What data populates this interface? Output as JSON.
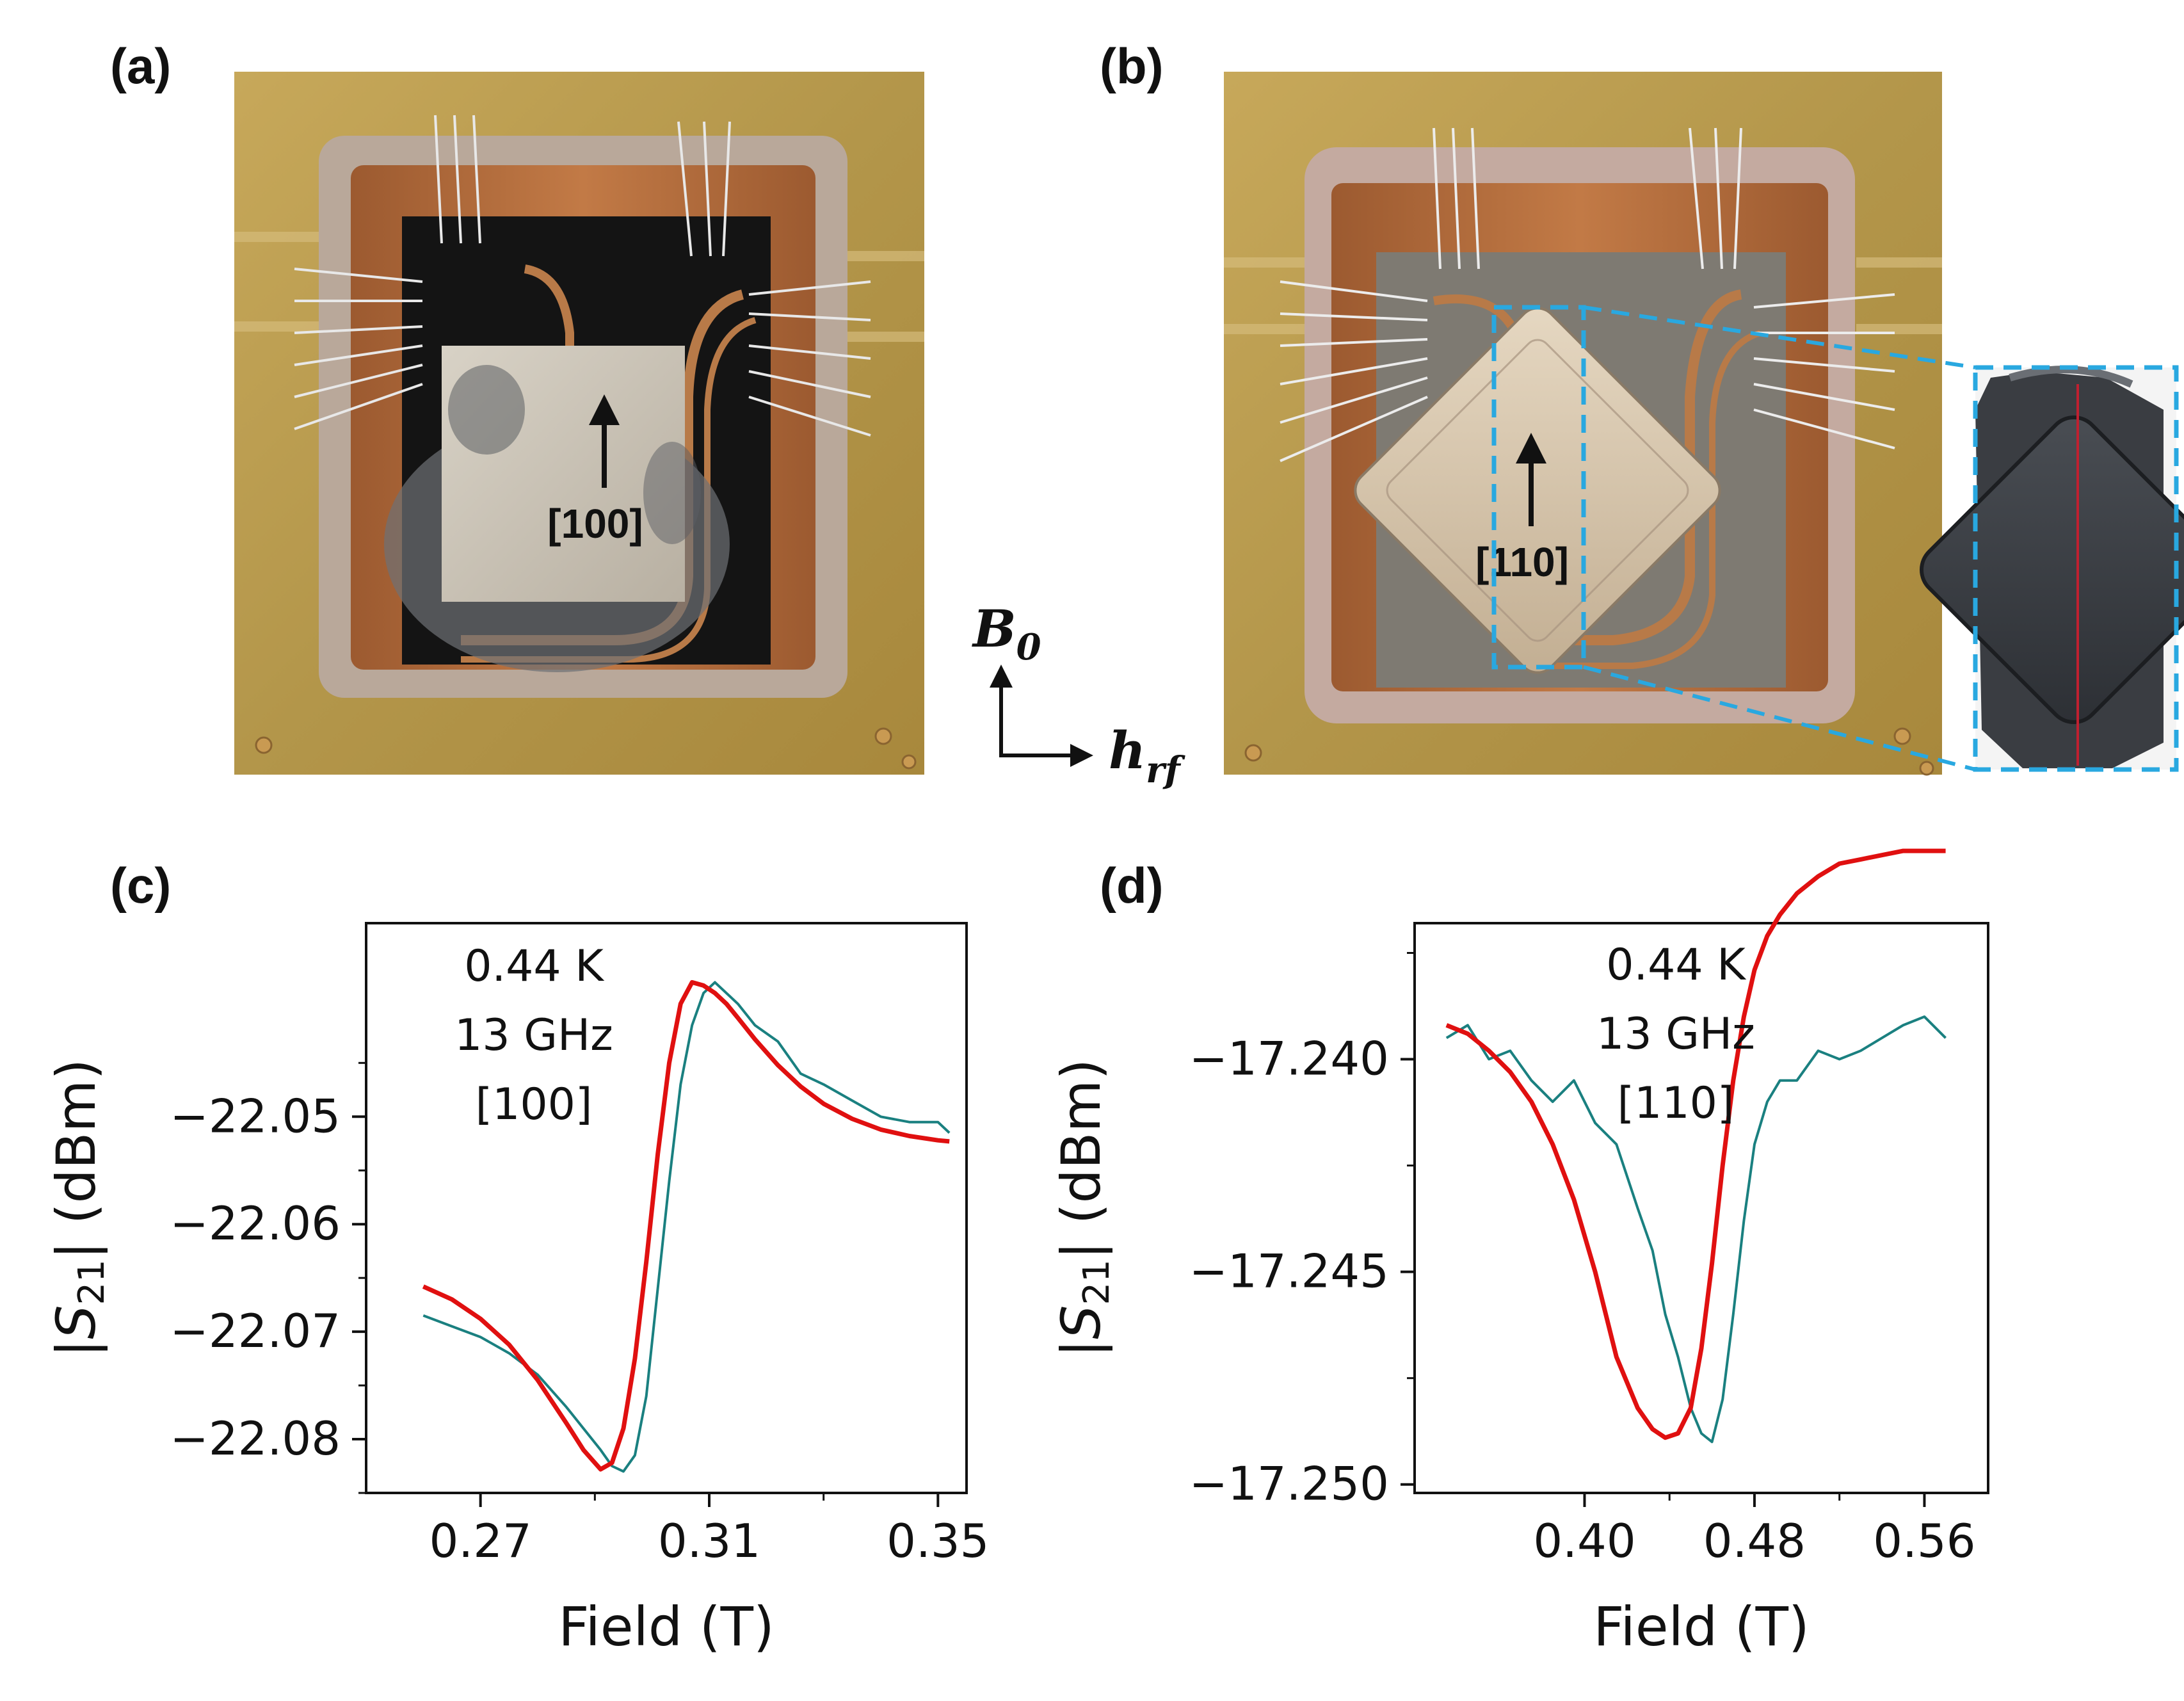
{
  "figure": {
    "labels": {
      "a": "(a)",
      "b": "(b)",
      "c": "(c)",
      "d": "(d)"
    },
    "photo_a": {
      "direction_label": "[100]"
    },
    "photo_b": {
      "direction_label": "[110]"
    },
    "axes_glyph": {
      "vertical": "B",
      "vertical_sub": "0",
      "horizontal": "h",
      "horizontal_sub": "rf"
    },
    "colors": {
      "measured": "#1a8080",
      "fit": "#e01010",
      "zoom_box": "#29a8e0",
      "gold": "#b89a4a",
      "copper": "#b06b3a"
    }
  },
  "chart_data": [
    {
      "type": "line",
      "panel": "(c)",
      "annotation": [
        "0.44 K",
        "13 GHz",
        "[100]"
      ],
      "xlabel": "Field (T)",
      "ylabel": "|S21| (dBm)",
      "xlim": [
        0.25,
        0.355
      ],
      "ylim": [
        -22.085,
        -22.032
      ],
      "xticks": [
        0.27,
        0.31,
        0.35
      ],
      "xtick_labels": [
        "0.27",
        "0.31",
        "0.35"
      ],
      "yticks": [
        -22.05,
        -22.06,
        -22.07,
        -22.08
      ],
      "ytick_labels": [
        "−22.05",
        "−22.06",
        "−22.07",
        "−22.08"
      ],
      "series": [
        {
          "kind": "data",
          "x": [
            0.26,
            0.265,
            0.27,
            0.275,
            0.28,
            0.285,
            0.288,
            0.291,
            0.293,
            0.295,
            0.297,
            0.299,
            0.301,
            0.303,
            0.305,
            0.307,
            0.309,
            0.311,
            0.313,
            0.315,
            0.318,
            0.322,
            0.326,
            0.33,
            0.335,
            0.34,
            0.345,
            0.35,
            0.352
          ],
          "y": [
            -22.0685,
            -22.0695,
            -22.0705,
            -22.072,
            -22.074,
            -22.077,
            -22.079,
            -22.081,
            -22.0825,
            -22.083,
            -22.0815,
            -22.076,
            -22.066,
            -22.056,
            -22.047,
            -22.0415,
            -22.0385,
            -22.0375,
            -22.0385,
            -22.0395,
            -22.0415,
            -22.043,
            -22.046,
            -22.047,
            -22.0485,
            -22.05,
            -22.0505,
            -22.0505,
            -22.0515
          ]
        },
        {
          "kind": "fit",
          "x": [
            0.26,
            0.265,
            0.27,
            0.275,
            0.28,
            0.285,
            0.288,
            0.291,
            0.293,
            0.295,
            0.297,
            0.299,
            0.301,
            0.303,
            0.305,
            0.307,
            0.309,
            0.311,
            0.313,
            0.315,
            0.318,
            0.322,
            0.326,
            0.33,
            0.335,
            0.34,
            0.345,
            0.35,
            0.352
          ],
          "y": [
            -22.0658,
            -22.067,
            -22.0688,
            -22.0712,
            -22.0745,
            -22.0785,
            -22.081,
            -22.0828,
            -22.0822,
            -22.079,
            -22.0725,
            -22.0635,
            -22.0535,
            -22.045,
            -22.0395,
            -22.0375,
            -22.0378,
            -22.0385,
            -22.0395,
            -22.0408,
            -22.0428,
            -22.0452,
            -22.0472,
            -22.0488,
            -22.0502,
            -22.0512,
            -22.0518,
            -22.0522,
            -22.0523
          ]
        }
      ]
    },
    {
      "type": "line",
      "panel": "(d)",
      "annotation": [
        "0.44 K",
        "13 GHz",
        "[110]"
      ],
      "xlabel": "Field (T)",
      "ylabel": "|S21| (dBm)",
      "xlim": [
        0.32,
        0.59
      ],
      "ylim": [
        -17.2502,
        -17.2368
      ],
      "xticks": [
        0.4,
        0.48,
        0.56
      ],
      "xtick_labels": [
        "0.40",
        "0.48",
        "0.56"
      ],
      "yticks": [
        -17.24,
        -17.245,
        -17.25
      ],
      "ytick_labels": [
        "−17.240",
        "−17.245",
        "−17.250"
      ],
      "series": [
        {
          "kind": "data",
          "x": [
            0.335,
            0.345,
            0.355,
            0.365,
            0.375,
            0.385,
            0.395,
            0.405,
            0.415,
            0.425,
            0.432,
            0.438,
            0.444,
            0.45,
            0.455,
            0.46,
            0.465,
            0.47,
            0.475,
            0.48,
            0.486,
            0.492,
            0.5,
            0.51,
            0.52,
            0.53,
            0.54,
            0.55,
            0.56,
            0.57
          ],
          "y": [
            -17.2395,
            -17.2392,
            -17.24,
            -17.2398,
            -17.2405,
            -17.241,
            -17.2405,
            -17.2415,
            -17.242,
            -17.2435,
            -17.2445,
            -17.246,
            -17.247,
            -17.2482,
            -17.2488,
            -17.249,
            -17.248,
            -17.246,
            -17.2438,
            -17.242,
            -17.241,
            -17.2405,
            -17.2405,
            -17.2398,
            -17.24,
            -17.2398,
            -17.2395,
            -17.2392,
            -17.239,
            -17.2395
          ]
        },
        {
          "kind": "fit",
          "x": [
            0.335,
            0.345,
            0.355,
            0.365,
            0.375,
            0.385,
            0.395,
            0.405,
            0.415,
            0.425,
            0.432,
            0.438,
            0.444,
            0.45,
            0.455,
            0.46,
            0.465,
            0.47,
            0.475,
            0.48,
            0.486,
            0.492,
            0.5,
            0.51,
            0.52,
            0.53,
            0.54,
            0.55,
            0.56,
            0.57
          ],
          "y": [
            -17.2392,
            -17.2394,
            -17.2398,
            -17.2403,
            -17.241,
            -17.242,
            -17.2433,
            -17.245,
            -17.247,
            -17.2482,
            -17.2487,
            -17.2489,
            -17.2488,
            -17.2482,
            -17.2468,
            -17.2448,
            -17.2425,
            -17.2405,
            -17.239,
            -17.2379,
            -17.2371,
            -17.2366,
            -17.2361,
            -17.2357,
            -17.2354,
            -17.2353,
            -17.2352,
            -17.2351,
            -17.2351,
            -17.2351
          ]
        }
      ]
    }
  ]
}
